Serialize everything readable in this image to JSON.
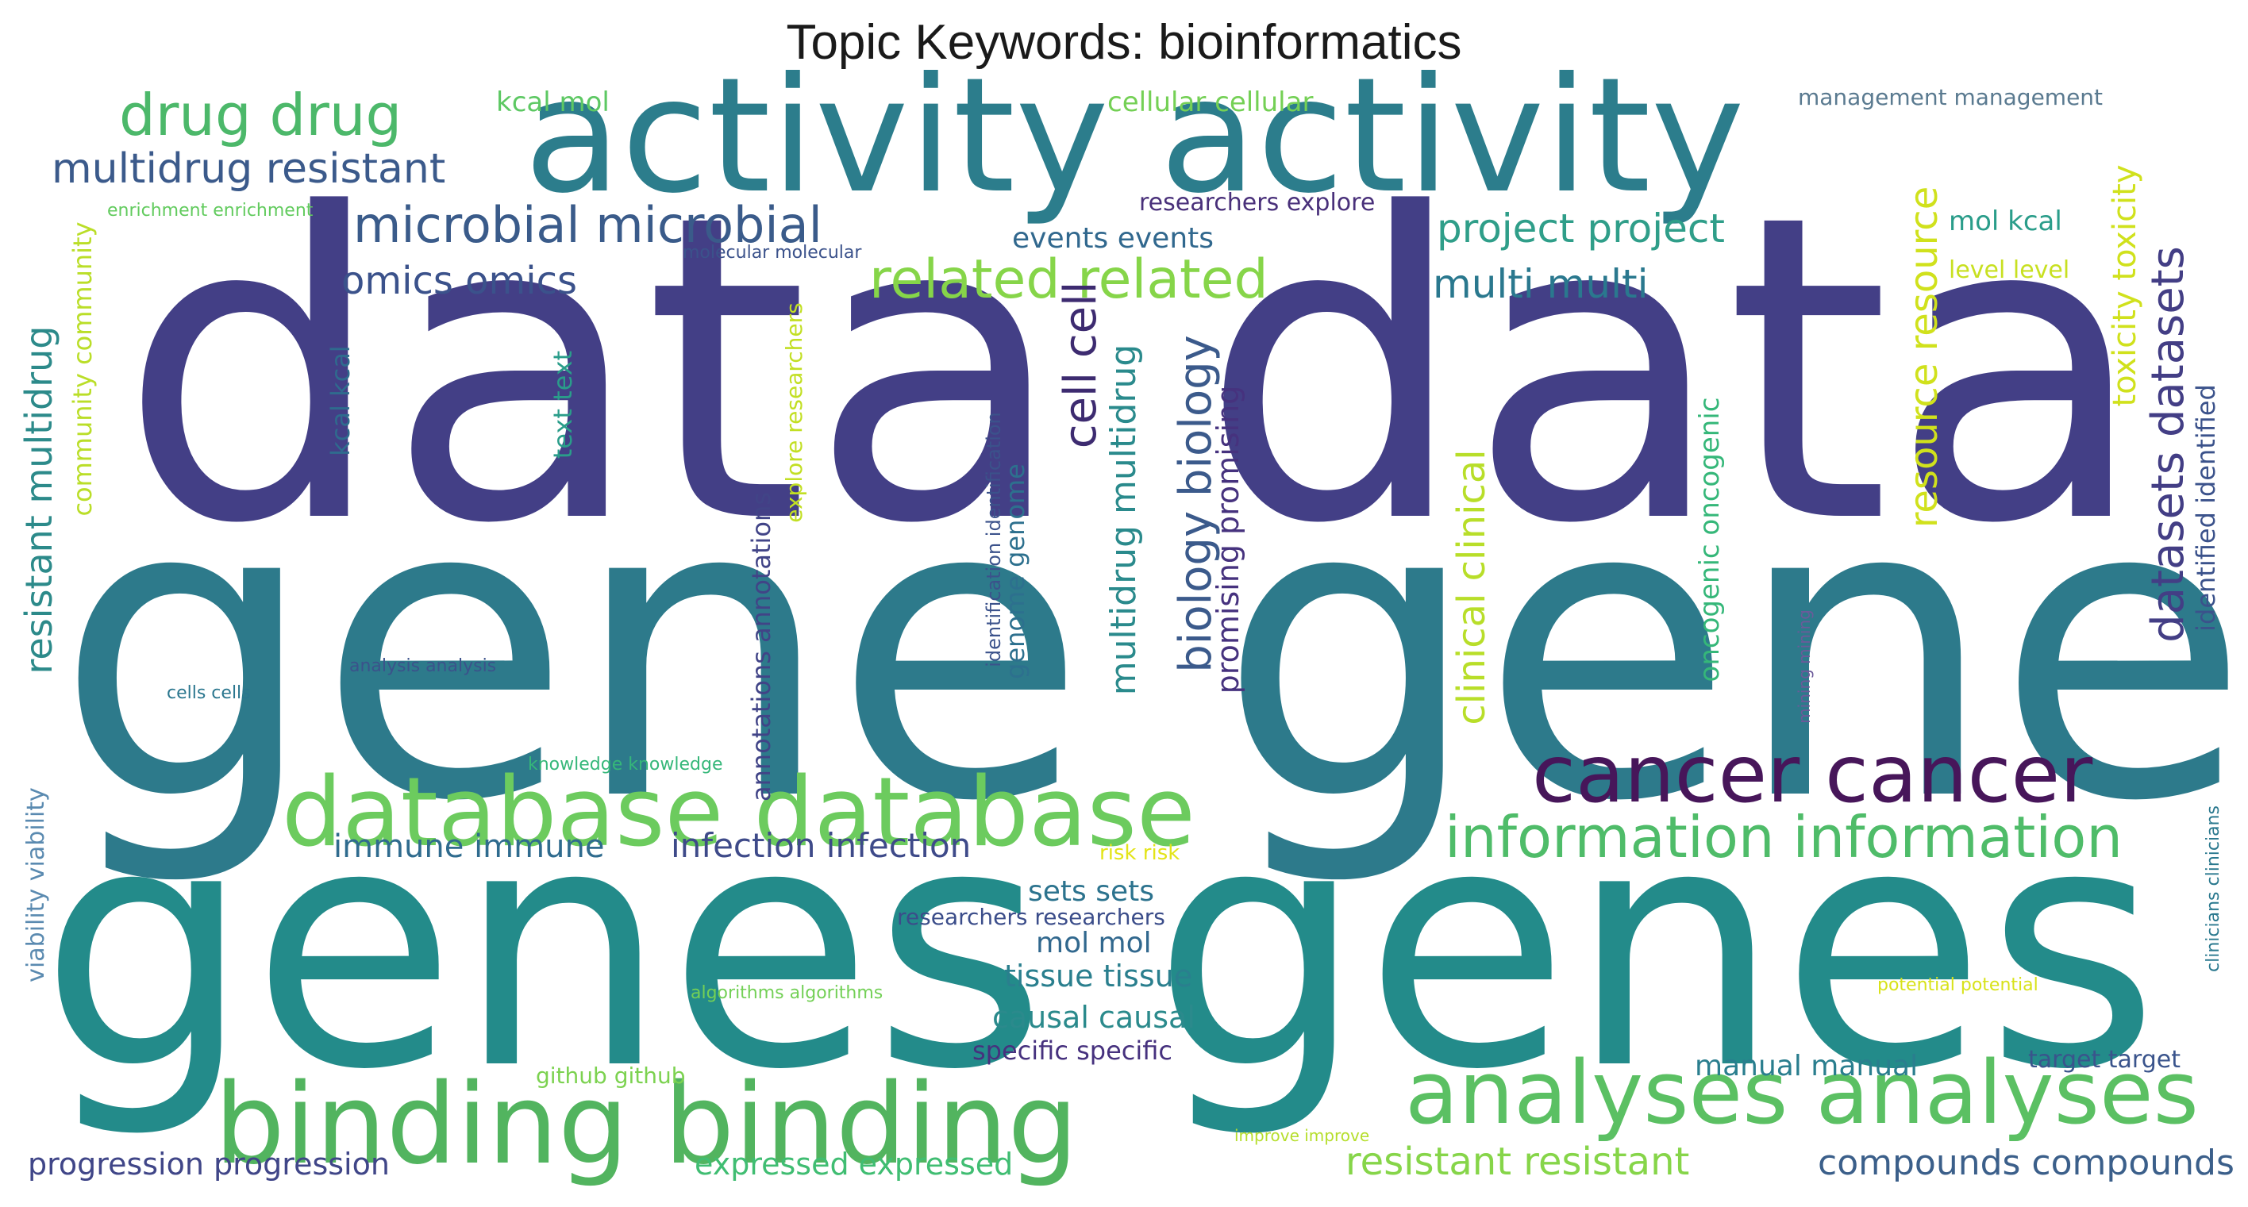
{
  "title": "Topic Keywords: bioinformatics",
  "words": [
    {
      "text": "data data",
      "color": "#433f86"
    },
    {
      "text": "gene gene",
      "color": "#2d7a8b"
    },
    {
      "text": "genes genes",
      "color": "#238b8a"
    },
    {
      "text": "activity activity",
      "color": "#2c7d8c"
    },
    {
      "text": "binding binding",
      "color": "#52b45f"
    },
    {
      "text": "database database",
      "color": "#6ccb5e"
    },
    {
      "text": "analyses analyses",
      "color": "#5bc063"
    },
    {
      "text": "cancer cancer",
      "color": "#47165a"
    },
    {
      "text": "information information",
      "color": "#4fbc69"
    },
    {
      "text": "drug drug",
      "color": "#4cb86a"
    },
    {
      "text": "microbial microbial",
      "color": "#3a5b8a"
    },
    {
      "text": "related related",
      "color": "#86d549"
    },
    {
      "text": "multidrug resistant",
      "color": "#3b5a8b"
    },
    {
      "text": "omics omics",
      "color": "#3b528b"
    },
    {
      "text": "project project",
      "color": "#2f9e89"
    },
    {
      "text": "multi multi",
      "color": "#2a788e"
    },
    {
      "text": "kcal mol",
      "color": "#5dc863"
    },
    {
      "text": "cellular cellular",
      "color": "#74d055"
    },
    {
      "text": "management management",
      "color": "#5a7a90"
    },
    {
      "text": "researchers explore",
      "color": "#49307a"
    },
    {
      "text": "events events",
      "color": "#31688e"
    },
    {
      "text": "mol kcal",
      "color": "#2a9d8a"
    },
    {
      "text": "level level",
      "color": "#c8e020"
    },
    {
      "text": "enrichment enrichment",
      "color": "#62cb5e"
    },
    {
      "text": "molecular molecular",
      "color": "#3b528b"
    },
    {
      "text": "immune immune",
      "color": "#2f6b8e"
    },
    {
      "text": "infection infection",
      "color": "#3e4a89"
    },
    {
      "text": "risk risk",
      "color": "#e3e418"
    },
    {
      "text": "sets sets",
      "color": "#2c738e"
    },
    {
      "text": "researchers researchers",
      "color": "#3b4d8a"
    },
    {
      "text": "mol mol",
      "color": "#31688e"
    },
    {
      "text": "tissue tissue",
      "color": "#2a7f8e"
    },
    {
      "text": "causal causal",
      "color": "#2b8a8c"
    },
    {
      "text": "specific specific",
      "color": "#46317e"
    },
    {
      "text": "algorithms algorithms",
      "color": "#73d056"
    },
    {
      "text": "github github",
      "color": "#7cd250"
    },
    {
      "text": "manual manual",
      "color": "#2a7e8e"
    },
    {
      "text": "target target",
      "color": "#3a548c"
    },
    {
      "text": "potential potential",
      "color": "#d8e219"
    },
    {
      "text": "improve improve",
      "color": "#b5de2b"
    },
    {
      "text": "expressed expressed",
      "color": "#40bd72"
    },
    {
      "text": "resistant resistant",
      "color": "#86d549"
    },
    {
      "text": "compounds compounds",
      "color": "#3b5f8a"
    },
    {
      "text": "progression progression",
      "color": "#404688"
    },
    {
      "text": "knowledge knowledge",
      "color": "#35b779"
    },
    {
      "text": "analysis analysis",
      "color": "#3b528b"
    },
    {
      "text": "cells cells",
      "color": "#2a768e"
    },
    {
      "text": "viability viability",
      "color": "#5a8ab0"
    },
    {
      "text": "resistant multidrug",
      "color": "#2c8a8a"
    },
    {
      "text": "community community",
      "color": "#bade28"
    },
    {
      "text": "kcal kcal",
      "color": "#2f6b8e"
    },
    {
      "text": "text text",
      "color": "#2a9d8a"
    },
    {
      "text": "explore researchers",
      "color": "#c2df23"
    },
    {
      "text": "annotations annotations",
      "color": "#414487"
    },
    {
      "text": "identification identification",
      "color": "#3b528b"
    },
    {
      "text": "genome genome",
      "color": "#2d708e"
    },
    {
      "text": "cell cell",
      "color": "#3d2b70"
    },
    {
      "text": "multidrug multidrug",
      "color": "#2a8a8c"
    },
    {
      "text": "biology biology",
      "color": "#3b5a8b"
    },
    {
      "text": "promising promising",
      "color": "#46327e"
    },
    {
      "text": "clinical clinical",
      "color": "#b8de29"
    },
    {
      "text": "oncogenic oncogenic",
      "color": "#35b779"
    },
    {
      "text": "resource resource",
      "color": "#d0e11c"
    },
    {
      "text": "datasets datasets",
      "color": "#433e85"
    },
    {
      "text": "identified identified",
      "color": "#3b528b"
    },
    {
      "text": "toxicity toxicity",
      "color": "#d0e11c"
    },
    {
      "text": "mining mining",
      "color": "#6c5a9a"
    },
    {
      "text": "clinicians clinicians",
      "color": "#2a788e"
    }
  ]
}
